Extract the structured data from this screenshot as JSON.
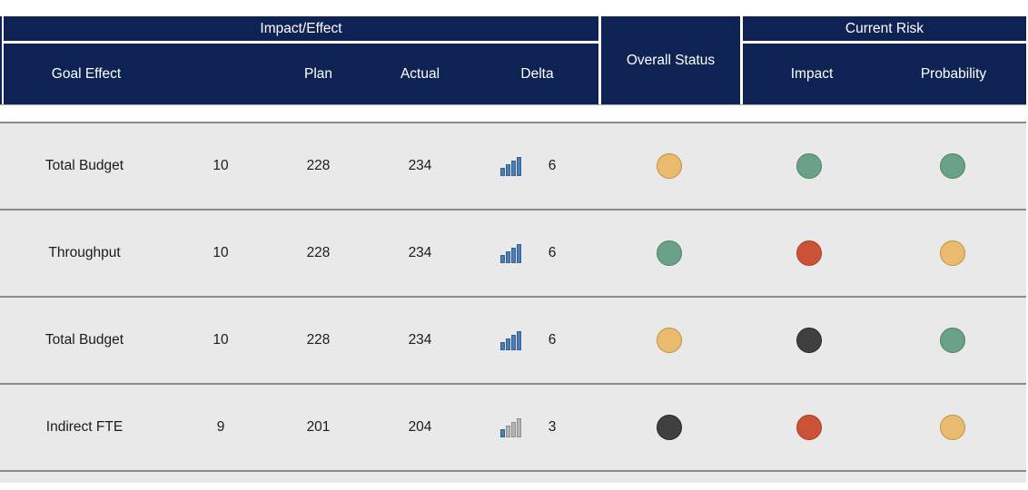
{
  "header": {
    "group_impact_effect": "Impact/Effect",
    "group_overall_status": "Overall Status",
    "group_current_risk": "Current Risk",
    "columns": {
      "goal_effect": "Goal Effect",
      "weight": "",
      "plan": "Plan",
      "actual": "Actual",
      "delta": "Delta",
      "impact": "Impact",
      "probability": "Probability"
    }
  },
  "rows": [
    {
      "goal_effect": "Total Budget",
      "weight": "10",
      "plan": "228",
      "actual": "234",
      "delta": "6",
      "delta_bars_filled": 4,
      "overall_status": "amber",
      "impact": "green",
      "probability": "green"
    },
    {
      "goal_effect": "Throughput",
      "weight": "10",
      "plan": "228",
      "actual": "234",
      "delta": "6",
      "delta_bars_filled": 4,
      "overall_status": "green",
      "impact": "red",
      "probability": "amber"
    },
    {
      "goal_effect": "Total Budget",
      "weight": "10",
      "plan": "228",
      "actual": "234",
      "delta": "6",
      "delta_bars_filled": 4,
      "overall_status": "amber",
      "impact": "dark",
      "probability": "green"
    },
    {
      "goal_effect": "Indirect FTE",
      "weight": "9",
      "plan": "201",
      "actual": "204",
      "delta": "3",
      "delta_bars_filled": 1,
      "overall_status": "dark",
      "impact": "red",
      "probability": "amber"
    }
  ],
  "colors": {
    "header_bg": "#0e2254",
    "header_text": "#ffffff",
    "row_bg": "#e9e9e9",
    "row_text": "#1b1b1b",
    "separator": "#8c8c8c",
    "status": {
      "amber": {
        "fill": "#e8bb6e",
        "border": "#bf8f42"
      },
      "green": {
        "fill": "#6ba188",
        "border": "#4d8268"
      },
      "red": {
        "fill": "#cd5137",
        "border": "#a84228"
      },
      "dark": {
        "fill": "#404040",
        "border": "#262626"
      }
    },
    "bar_filled": {
      "fill": "#4a7ebb",
      "border": "#36608f"
    },
    "bar_empty": {
      "fill": "#b5b5b5",
      "border": "#8f8f8f"
    }
  }
}
